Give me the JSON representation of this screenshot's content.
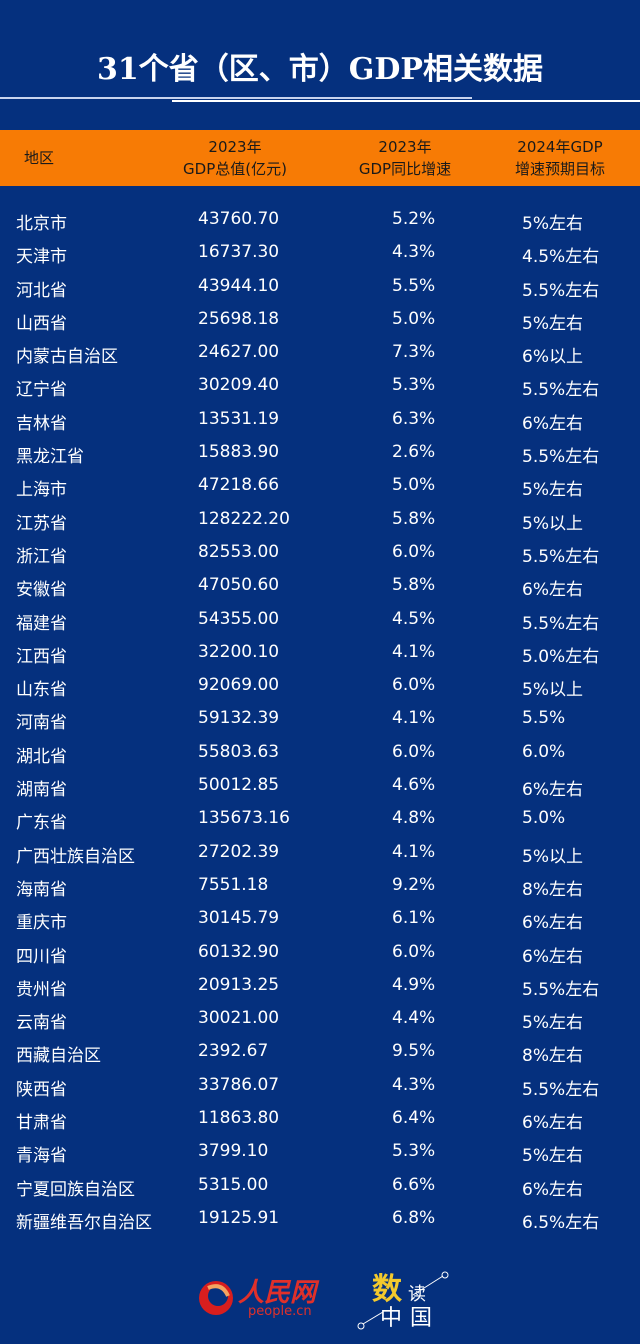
{
  "title": "31个省（区、市）GDP相关数据",
  "header": {
    "col0": "地区",
    "col1a": "2023年",
    "col1b": "GDP总值(亿元)",
    "col2a": "2023年",
    "col2b": "GDP同比增速",
    "col3a": "2024年GDP",
    "col3b": "增速预期目标"
  },
  "rows": [
    [
      "北京市",
      "43760.70",
      "5.2%",
      "5%左右"
    ],
    [
      "天津市",
      "16737.30",
      "4.3%",
      "4.5%左右"
    ],
    [
      "河北省",
      "43944.10",
      "5.5%",
      "5.5%左右"
    ],
    [
      "山西省",
      "25698.18",
      "5.0%",
      "5%左右"
    ],
    [
      "内蒙古自治区",
      "24627.00",
      "7.3%",
      "6%以上"
    ],
    [
      "辽宁省",
      "30209.40",
      "5.3%",
      "5.5%左右"
    ],
    [
      "吉林省",
      "13531.19",
      "6.3%",
      "6%左右"
    ],
    [
      "黑龙江省",
      "15883.90",
      "2.6%",
      "5.5%左右"
    ],
    [
      "上海市",
      "47218.66",
      "5.0%",
      "5%左右"
    ],
    [
      "江苏省",
      "128222.20",
      "5.8%",
      "5%以上"
    ],
    [
      "浙江省",
      "82553.00",
      "6.0%",
      "5.5%左右"
    ],
    [
      "安徽省",
      "47050.60",
      "5.8%",
      "6%左右"
    ],
    [
      "福建省",
      "54355.00",
      "4.5%",
      "5.5%左右"
    ],
    [
      "江西省",
      "32200.10",
      "4.1%",
      "5.0%左右"
    ],
    [
      "山东省",
      "92069.00",
      "6.0%",
      "5%以上"
    ],
    [
      "河南省",
      "59132.39",
      "4.1%",
      "5.5%"
    ],
    [
      "湖北省",
      "55803.63",
      "6.0%",
      "6.0%"
    ],
    [
      "湖南省",
      "50012.85",
      "4.6%",
      "6%左右"
    ],
    [
      "广东省",
      "135673.16",
      "4.8%",
      "5.0%"
    ],
    [
      "广西壮族自治区",
      "27202.39",
      "4.1%",
      "5%以上"
    ],
    [
      "海南省",
      "7551.18",
      "9.2%",
      "8%左右"
    ],
    [
      "重庆市",
      "30145.79",
      "6.1%",
      "6%左右"
    ],
    [
      "四川省",
      "60132.90",
      "6.0%",
      "6%左右"
    ],
    [
      "贵州省",
      "20913.25",
      "4.9%",
      "5.5%左右"
    ],
    [
      "云南省",
      "30021.00",
      "4.4%",
      "5%左右"
    ],
    [
      "西藏自治区",
      "2392.67",
      "9.5%",
      "8%左右"
    ],
    [
      "陕西省",
      "33786.07",
      "4.3%",
      "5.5%左右"
    ],
    [
      "甘肃省",
      "11863.80",
      "6.4%",
      "6%左右"
    ],
    [
      "青海省",
      "3799.10",
      "5.3%",
      "5%左右"
    ],
    [
      "宁夏回族自治区",
      "5315.00",
      "6.6%",
      "6%左右"
    ],
    [
      "新疆维吾尔自治区",
      "19125.91",
      "6.8%",
      "6.5%左右"
    ]
  ],
  "footer": {
    "logo1_text": "人民网",
    "logo1_url": "people.cn",
    "logo2_a": "数",
    "logo2_b": "读",
    "logo2_c": "中国"
  },
  "colors": {
    "background": "#05307e",
    "header_bar": "#f77b05",
    "brand_red": "#e0302a",
    "accent_yellow": "#f3c92d"
  }
}
